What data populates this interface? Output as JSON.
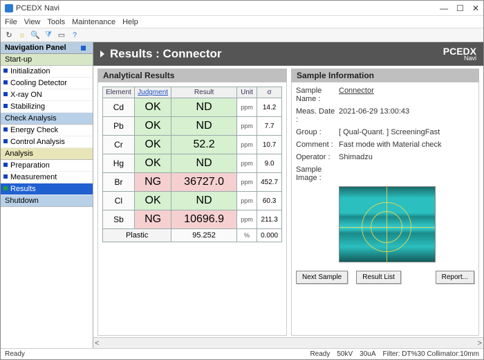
{
  "window": {
    "title": "PCEDX Navi"
  },
  "menubar": [
    "File",
    "View",
    "Tools",
    "Maintenance",
    "Help"
  ],
  "nav": {
    "header": "Navigation Panel",
    "groups": [
      {
        "label": "Start-up",
        "style": "green",
        "items": [
          {
            "label": "Initialization",
            "c": "blue"
          },
          {
            "label": "Cooling Detector",
            "c": "blue"
          },
          {
            "label": "X-ray ON",
            "c": "blue"
          },
          {
            "label": "Stabilizing",
            "c": "blue"
          }
        ]
      },
      {
        "label": "Check Analysis",
        "style": "blue",
        "items": [
          {
            "label": "Energy Check",
            "c": "blue"
          },
          {
            "label": "Control Analysis",
            "c": "blue"
          }
        ]
      },
      {
        "label": "Analysis",
        "style": "yellow",
        "items": [
          {
            "label": "Preparation",
            "c": "blue"
          },
          {
            "label": "Measurement",
            "c": "blue"
          },
          {
            "label": "Results",
            "c": "green",
            "sel": true
          }
        ]
      },
      {
        "label": "Shutdown",
        "style": "blue",
        "items": []
      }
    ]
  },
  "page": {
    "title": "Results : Connector",
    "brand": "PCEDX",
    "brand_sub": "Navi"
  },
  "results": {
    "panel_title": "Analytical Results",
    "cols": [
      "Element",
      "Judgment",
      "Result",
      "Unit",
      "σ"
    ],
    "rows": [
      {
        "e": "Cd",
        "j": "OK",
        "r": "ND",
        "u": "ppm",
        "s": "14.2",
        "ok": true
      },
      {
        "e": "Pb",
        "j": "OK",
        "r": "ND",
        "u": "ppm",
        "s": "7.7",
        "ok": true
      },
      {
        "e": "Cr",
        "j": "OK",
        "r": "52.2",
        "u": "ppm",
        "s": "10.7",
        "ok": true
      },
      {
        "e": "Hg",
        "j": "OK",
        "r": "ND",
        "u": "ppm",
        "s": "9.0",
        "ok": true
      },
      {
        "e": "Br",
        "j": "NG",
        "r": "36727.0",
        "u": "ppm",
        "s": "452.7",
        "ok": false
      },
      {
        "e": "Cl",
        "j": "OK",
        "r": "ND",
        "u": "ppm",
        "s": "60.3",
        "ok": true
      },
      {
        "e": "Sb",
        "j": "NG",
        "r": "10696.9",
        "u": "ppm",
        "s": "211.3",
        "ok": false
      }
    ],
    "plastic": {
      "label": "Plastic",
      "result": "95.252",
      "unit": "%",
      "sig": "0.000"
    }
  },
  "info": {
    "panel_title": "Sample Information",
    "fields": [
      {
        "k": "Sample Name :",
        "v": "Connector",
        "link": true
      },
      {
        "k": "Meas. Date :",
        "v": "2021-06-29 13:00:43"
      },
      {
        "k": "Group :",
        "v": "[ Qual-Quant. ] ScreeningFast"
      },
      {
        "k": "Comment :",
        "v": "Fast mode with Material check"
      },
      {
        "k": "Operator :",
        "v": "Shimadzu"
      }
    ],
    "image_label": "Sample Image :",
    "buttons": [
      "Next Sample",
      "Result List",
      "Report..."
    ]
  },
  "status": {
    "left": "Ready",
    "ready2": "Ready",
    "kv": "50kV",
    "ua": "30uA",
    "filter": "Filter: DT%30 Collimator:10mm"
  },
  "colors": {
    "ok": "#d6f0d0",
    "ng": "#f6d0d0",
    "header": "#555",
    "navsel": "#2060d0"
  }
}
